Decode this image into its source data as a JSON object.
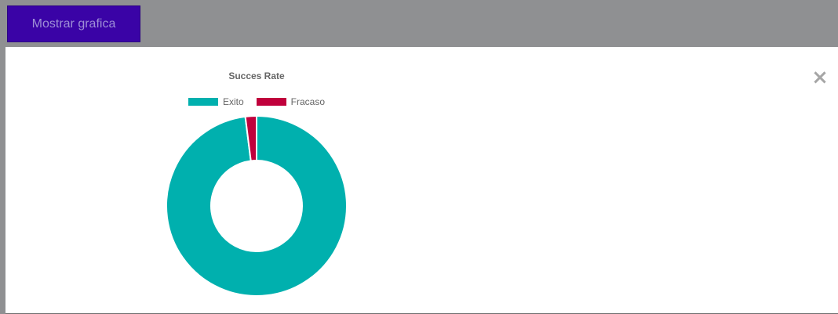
{
  "toolbar": {
    "show_chart_label": "Mostrar grafica"
  },
  "modal": {
    "close_glyph": "×"
  },
  "chart_data": {
    "type": "pie",
    "title": "Succes Rate",
    "categories": [
      "Exito",
      "Fracaso"
    ],
    "values": [
      98,
      2
    ],
    "colors": [
      "#00b0ae",
      "#c0003c"
    ],
    "legend_position": "top",
    "donut": true
  }
}
